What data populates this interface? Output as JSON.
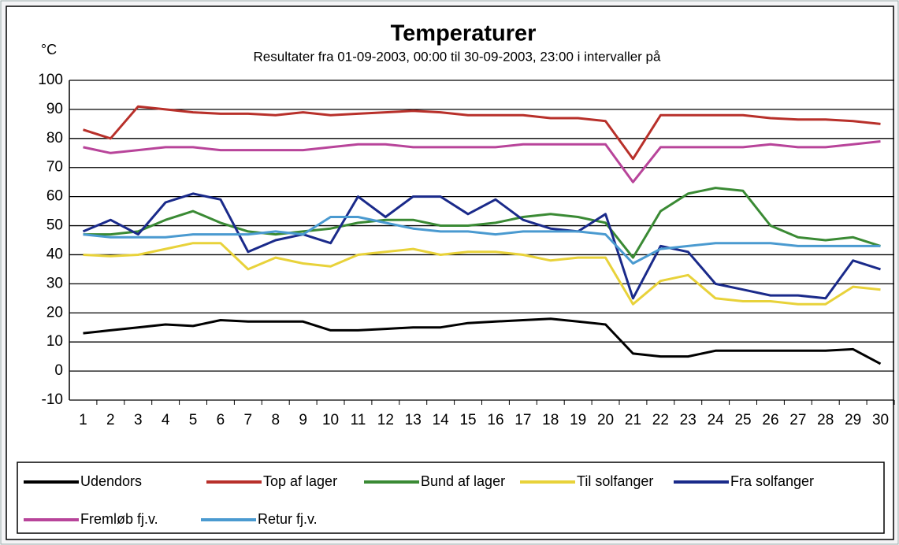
{
  "chart_data": {
    "type": "line",
    "title": "Temperaturer",
    "subtitle": "Resultater fra 01-09-2003, 00:00 til 30-09-2003, 23:00 i intervaller på",
    "y_label": "°C",
    "categories": [
      "1",
      "2",
      "3",
      "4",
      "5",
      "6",
      "7",
      "8",
      "9",
      "10",
      "11",
      "12",
      "13",
      "14",
      "15",
      "16",
      "17",
      "18",
      "19",
      "20",
      "21",
      "22",
      "23",
      "24",
      "25",
      "26",
      "27",
      "28",
      "29",
      "30"
    ],
    "ylim": [
      -10,
      100
    ],
    "yticks": [
      -10,
      0,
      10,
      20,
      30,
      40,
      50,
      60,
      70,
      80,
      90,
      100
    ],
    "grid": true,
    "legend": "bottom",
    "series": [
      {
        "name": "Udendors",
        "color": "#000000",
        "values": [
          13,
          14,
          15,
          16,
          15.5,
          17.5,
          17,
          17,
          17,
          14,
          14,
          14.5,
          15,
          15,
          16.5,
          17,
          17.5,
          18,
          17,
          16,
          6,
          5,
          5,
          7,
          7,
          7,
          7,
          7,
          7.5,
          2.5
        ]
      },
      {
        "name": "Top af lager",
        "color": "#b8302a",
        "values": [
          83,
          80,
          91,
          90,
          89,
          88.5,
          88.5,
          88,
          89,
          88,
          88.5,
          89,
          89.5,
          89,
          88,
          88,
          88,
          87,
          87,
          86,
          73,
          88,
          88,
          88,
          88,
          87,
          86.5,
          86.5,
          86,
          85
        ]
      },
      {
        "name": "Bund af lager",
        "color": "#3a8a34",
        "values": [
          47,
          47,
          48,
          52,
          55,
          51,
          48,
          47,
          48,
          49,
          51,
          52,
          52,
          50,
          50,
          51,
          53,
          54,
          53,
          51,
          39,
          55,
          61,
          63,
          62,
          50,
          46,
          45,
          46,
          43
        ]
      },
      {
        "name": "Til solfanger",
        "color": "#e8d23a",
        "values": [
          40,
          39.5,
          40,
          42,
          44,
          44,
          35,
          39,
          37,
          36,
          40,
          41,
          42,
          40,
          41,
          41,
          40,
          38,
          39,
          39,
          23,
          31,
          33,
          25,
          24,
          24,
          23,
          23,
          29,
          28
        ]
      },
      {
        "name": "Fra solfanger",
        "color": "#1a2a8a",
        "values": [
          48,
          52,
          47,
          58,
          61,
          59,
          41,
          45,
          47,
          44,
          60,
          53,
          60,
          60,
          54,
          59,
          52,
          49,
          48,
          54,
          25,
          43,
          41,
          30,
          28,
          26,
          26,
          25,
          38,
          35
        ]
      },
      {
        "name": "Fremløb fj.v.",
        "color": "#b8449a",
        "values": [
          77,
          75,
          76,
          77,
          77,
          76,
          76,
          76,
          76,
          77,
          78,
          78,
          77,
          77,
          77,
          77,
          78,
          78,
          78,
          78,
          65,
          77,
          77,
          77,
          77,
          78,
          77,
          77,
          78,
          79
        ]
      },
      {
        "name": "Retur fj.v.",
        "color": "#4a9ad0",
        "values": [
          47,
          46,
          46,
          46,
          47,
          47,
          47,
          48,
          47,
          53,
          53,
          51,
          49,
          48,
          48,
          47,
          48,
          48,
          48,
          47,
          37,
          42,
          43,
          44,
          44,
          44,
          43,
          43,
          43,
          43
        ]
      }
    ]
  }
}
